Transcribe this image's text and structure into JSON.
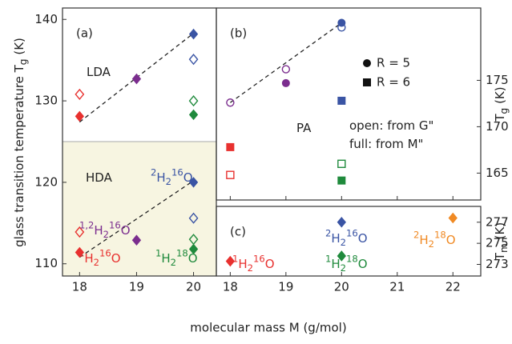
{
  "chart_data": [
    {
      "type": "scatter",
      "panel_label": "(a)",
      "ylabel": [
        {
          "text": "glass transition temperature T"
        },
        {
          "text": "g",
          "pos": "sub"
        },
        {
          "text": " (K)"
        }
      ],
      "xlim": [
        17.7,
        20.4
      ],
      "xticks": [
        18,
        19,
        20
      ],
      "ylim": [
        108.5,
        141.4
      ],
      "yticks": [
        110,
        120,
        130,
        140
      ],
      "yaxis_side": "left",
      "xtick_labels": true,
      "shade_below": 125,
      "shade_color": "#f7f5e1",
      "series": [
        {
          "color": "#e8312f",
          "marker": "diamond",
          "filled": true,
          "x": [
            18,
            18
          ],
          "values": [
            128.1,
            111.4
          ]
        },
        {
          "color": "#e8312f",
          "marker": "diamond",
          "filled": false,
          "x": [
            18,
            18
          ],
          "values": [
            130.8,
            113.9
          ]
        },
        {
          "color": "#7b2d8e",
          "marker": "diamond",
          "filled": true,
          "x": [
            19,
            19
          ],
          "values": [
            132.7,
            112.9
          ]
        },
        {
          "color": "#3a54a4",
          "marker": "diamond",
          "filled": true,
          "x": [
            20,
            20
          ],
          "values": [
            138.2,
            120.0
          ]
        },
        {
          "color": "#3a54a4",
          "marker": "diamond",
          "filled": false,
          "x": [
            20,
            20
          ],
          "values": [
            135.1,
            115.6
          ]
        },
        {
          "color": "#1f8a3c",
          "marker": "diamond",
          "filled": false,
          "x": [
            20,
            20
          ],
          "values": [
            130.0,
            113.0
          ]
        },
        {
          "color": "#1f8a3c",
          "marker": "diamond",
          "filled": true,
          "x": [
            20,
            20
          ],
          "values": [
            128.3,
            111.8
          ]
        }
      ],
      "fit_lines": [
        {
          "x": [
            18,
            20
          ],
          "values": [
            127.4,
            138.3
          ]
        },
        {
          "x": [
            18,
            20
          ],
          "values": [
            110.8,
            120.2
          ]
        }
      ],
      "annotations": [
        {
          "parts": [
            {
              "text": "LDA"
            }
          ]
        },
        {
          "parts": [
            {
              "text": "HDA"
            }
          ]
        },
        {
          "color": "#3a54a4",
          "parts": [
            {
              "text": "2",
              "pos": "sup"
            },
            {
              "text": "H"
            },
            {
              "text": "2",
              "pos": "sub"
            },
            {
              "text": "16",
              "pos": "sup"
            },
            {
              "text": "O"
            }
          ]
        },
        {
          "color": "#7b2d8e",
          "parts": [
            {
              "text": "1,2",
              "pos": "sup"
            },
            {
              "text": "H"
            },
            {
              "text": "2",
              "pos": "sub"
            },
            {
              "text": "16",
              "pos": "sup"
            },
            {
              "text": "O"
            }
          ]
        },
        {
          "color": "#e8312f",
          "parts": [
            {
              "text": "1",
              "pos": "sup"
            },
            {
              "text": "H"
            },
            {
              "text": "2",
              "pos": "sub"
            },
            {
              "text": "16",
              "pos": "sup"
            },
            {
              "text": "O"
            }
          ]
        },
        {
          "color": "#1f8a3c",
          "parts": [
            {
              "text": "1",
              "pos": "sup"
            },
            {
              "text": "H"
            },
            {
              "text": "2",
              "pos": "sub"
            },
            {
              "text": "18",
              "pos": "sup"
            },
            {
              "text": "O"
            }
          ]
        }
      ]
    },
    {
      "type": "scatter",
      "panel_label": "(b)",
      "ylabel": [
        {
          "text": "T"
        },
        {
          "text": "g",
          "pos": "sub"
        },
        {
          "text": " (K)"
        }
      ],
      "xlim": [
        17.75,
        22.5
      ],
      "xticks": [
        18,
        19,
        20,
        21,
        22
      ],
      "ylim": [
        162.1,
        182.8
      ],
      "yticks": [
        165,
        170,
        175
      ],
      "yaxis_side": "right",
      "xtick_labels": false,
      "series": [
        {
          "color": "#7b2d8e",
          "marker": "circle",
          "filled": false,
          "x": [
            18,
            19
          ],
          "values": [
            172.6,
            176.2
          ]
        },
        {
          "color": "#7b2d8e",
          "marker": "circle",
          "filled": true,
          "x": [
            19
          ],
          "values": [
            174.7
          ]
        },
        {
          "color": "#3a54a4",
          "marker": "circle",
          "filled": true,
          "x": [
            20
          ],
          "values": [
            181.2
          ]
        },
        {
          "color": "#3a54a4",
          "marker": "circle",
          "filled": false,
          "x": [
            20
          ],
          "values": [
            180.7
          ]
        },
        {
          "color": "#e8312f",
          "marker": "square",
          "filled": true,
          "x": [
            18
          ],
          "values": [
            167.8
          ]
        },
        {
          "color": "#e8312f",
          "marker": "square",
          "filled": false,
          "x": [
            18
          ],
          "values": [
            164.8
          ]
        },
        {
          "color": "#3a54a4",
          "marker": "square",
          "filled": true,
          "x": [
            20
          ],
          "values": [
            172.8
          ]
        },
        {
          "color": "#1f8a3c",
          "marker": "square",
          "filled": false,
          "x": [
            20
          ],
          "values": [
            166.0
          ]
        },
        {
          "color": "#1f8a3c",
          "marker": "square",
          "filled": true,
          "x": [
            20
          ],
          "values": [
            164.2
          ]
        }
      ],
      "fit_lines": [
        {
          "x": [
            18,
            20
          ],
          "values": [
            172.6,
            181.2
          ]
        }
      ],
      "legend": [
        {
          "marker": "circle",
          "label": "R = 5"
        },
        {
          "marker": "square",
          "label": "R = 6"
        }
      ],
      "annotations": [
        {
          "parts": [
            {
              "text": "PA"
            }
          ]
        },
        {
          "parts": [
            {
              "text": "open: from G\""
            }
          ]
        },
        {
          "parts": [
            {
              "text": "full:  from M\""
            }
          ]
        }
      ]
    },
    {
      "type": "scatter",
      "panel_label": "(c)",
      "ylabel": [
        {
          "text": "T"
        },
        {
          "text": "m",
          "pos": "sub"
        },
        {
          "text": " (K)"
        }
      ],
      "xlabel": "molecular mass M (g/mol)",
      "xlim": [
        17.75,
        22.5
      ],
      "xticks": [
        18,
        19,
        20,
        21,
        22
      ],
      "ylim": [
        271.9,
        278.5
      ],
      "yticks": [
        273,
        275,
        277
      ],
      "yaxis_side": "right",
      "xtick_labels": true,
      "series": [
        {
          "color": "#e8312f",
          "marker": "diamond",
          "filled": true,
          "x": [
            18
          ],
          "values": [
            273.3
          ]
        },
        {
          "color": "#3a54a4",
          "marker": "diamond",
          "filled": true,
          "x": [
            20
          ],
          "values": [
            277.0
          ]
        },
        {
          "color": "#1f8a3c",
          "marker": "diamond",
          "filled": true,
          "x": [
            20
          ],
          "values": [
            273.8
          ]
        },
        {
          "color": "#f08a24",
          "marker": "diamond",
          "filled": true,
          "x": [
            22
          ],
          "values": [
            277.4
          ]
        }
      ],
      "annotations": [
        {
          "color": "#e8312f",
          "parts": [
            {
              "text": "1",
              "pos": "sup"
            },
            {
              "text": "H"
            },
            {
              "text": "2",
              "pos": "sub"
            },
            {
              "text": "16",
              "pos": "sup"
            },
            {
              "text": "O"
            }
          ]
        },
        {
          "color": "#3a54a4",
          "parts": [
            {
              "text": "2",
              "pos": "sup"
            },
            {
              "text": "H"
            },
            {
              "text": "2",
              "pos": "sub"
            },
            {
              "text": "16",
              "pos": "sup"
            },
            {
              "text": "O"
            }
          ]
        },
        {
          "color": "#1f8a3c",
          "parts": [
            {
              "text": "1",
              "pos": "sup"
            },
            {
              "text": "H"
            },
            {
              "text": "2",
              "pos": "sub"
            },
            {
              "text": "18",
              "pos": "sup"
            },
            {
              "text": "O"
            }
          ]
        },
        {
          "color": "#f08a24",
          "parts": [
            {
              "text": "2",
              "pos": "sup"
            },
            {
              "text": "H"
            },
            {
              "text": "2",
              "pos": "sub"
            },
            {
              "text": "18",
              "pos": "sup"
            },
            {
              "text": "O"
            }
          ]
        }
      ]
    }
  ]
}
